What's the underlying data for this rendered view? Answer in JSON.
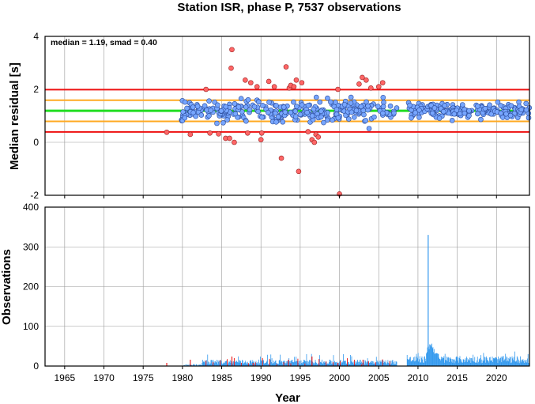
{
  "colors": {
    "median_line": "#22dd22",
    "smad_line": "#ffaa22",
    "limit_line": "#ee1111",
    "inlier_fill": "#77a6ff",
    "outlier_fill": "#ff6666",
    "bar_main": "#3399ee",
    "bar_outlier": "#ee2222"
  },
  "chart_data": [
    {
      "type": "scatter",
      "title": "Station ISR, phase P, 7537 observations",
      "ylabel": "Median residual [s]",
      "xlabel": "",
      "annotation": "median = 1.19, smad = 0.40",
      "xlim": [
        1962.5,
        2024.2
      ],
      "ylim": [
        -2,
        4
      ],
      "xticks": [
        1965,
        1970,
        1975,
        1980,
        1985,
        1990,
        1995,
        2000,
        2005,
        2010,
        2015,
        2020
      ],
      "yticks": [
        -2,
        0,
        2,
        4
      ],
      "grid": true,
      "median": 1.19,
      "smad": 0.4,
      "hlines": [
        {
          "y": 1.19,
          "role": "median"
        },
        {
          "y": 1.59,
          "role": "smad"
        },
        {
          "y": 0.79,
          "role": "smad"
        },
        {
          "y": 1.99,
          "role": "limit"
        },
        {
          "y": 0.39,
          "role": "limit"
        }
      ],
      "outliers": [
        [
          1978.0,
          0.38
        ],
        [
          1981.0,
          0.3
        ],
        [
          1983.0,
          2.0
        ],
        [
          1983.5,
          0.35
        ],
        [
          1984.6,
          0.32
        ],
        [
          1985.5,
          0.15
        ],
        [
          1986.0,
          0.15
        ],
        [
          1986.2,
          2.8
        ],
        [
          1986.3,
          3.5
        ],
        [
          1986.6,
          0.0
        ],
        [
          1988.0,
          2.35
        ],
        [
          1988.3,
          0.35
        ],
        [
          1988.7,
          2.25
        ],
        [
          1989.5,
          2.1
        ],
        [
          1990.0,
          0.1
        ],
        [
          1990.1,
          0.35
        ],
        [
          1991.0,
          2.3
        ],
        [
          1991.7,
          2.1
        ],
        [
          1992.6,
          -0.6
        ],
        [
          1993.2,
          2.85
        ],
        [
          1993.6,
          2.05
        ],
        [
          1993.8,
          2.15
        ],
        [
          1994.2,
          2.1
        ],
        [
          1994.5,
          2.35
        ],
        [
          1994.8,
          -1.1
        ],
        [
          1995.2,
          2.25
        ],
        [
          1996.0,
          0.4
        ],
        [
          1996.5,
          0.1
        ],
        [
          1996.8,
          0.0
        ],
        [
          1997.0,
          0.3
        ],
        [
          1997.3,
          0.2
        ],
        [
          1999.8,
          2.0
        ],
        [
          2000.0,
          -1.95
        ],
        [
          2002.5,
          2.2
        ],
        [
          2002.9,
          2.45
        ],
        [
          2003.4,
          2.35
        ],
        [
          2004.0,
          2.05
        ],
        [
          2005.0,
          2.1
        ],
        [
          2005.5,
          2.25
        ]
      ],
      "inlier_band": {
        "x_start": 1979.8,
        "x_end": 2024.2,
        "count": 520,
        "spread_early": 0.44,
        "spread_late": 0.3
      }
    },
    {
      "type": "bar",
      "title": "",
      "xlabel": "Year",
      "ylabel": "Observations",
      "xlim": [
        1962.5,
        2024.2
      ],
      "ylim": [
        0,
        400
      ],
      "xticks": [
        1965,
        1970,
        1975,
        1980,
        1985,
        1990,
        1995,
        2000,
        2005,
        2010,
        2015,
        2020
      ],
      "yticks": [
        0,
        100,
        200,
        300,
        400
      ],
      "grid": true,
      "peak": {
        "x": 2011.3,
        "value": 330
      },
      "series": [
        {
          "role": "main",
          "base_level": 12,
          "late_level": 18
        },
        {
          "role": "outlier",
          "sample_x": [
            1978.0,
            1981.0,
            1986.3,
            1989.0,
            1993.5,
            1996.5,
            1999.8,
            2003.0
          ]
        }
      ]
    }
  ]
}
